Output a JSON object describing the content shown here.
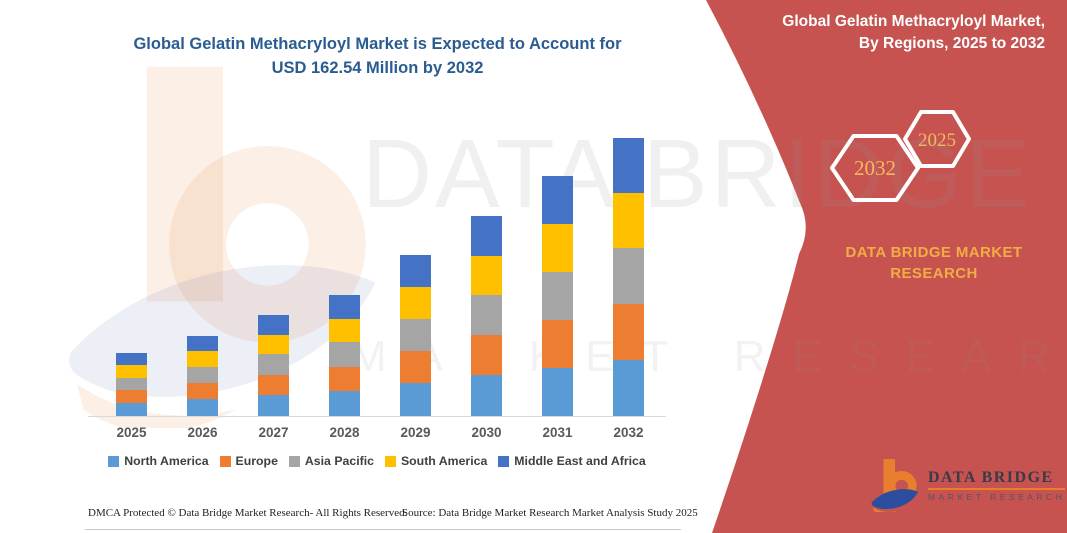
{
  "main_title": {
    "line1": "Global Gelatin Methacryloyl Market is Expected to Account for",
    "line2": "USD 162.54 Million by 2032",
    "color": "#2b5c91"
  },
  "chart_data": {
    "type": "bar",
    "stacked": true,
    "unit": "USD Million",
    "categories": [
      "2025",
      "2026",
      "2027",
      "2028",
      "2029",
      "2030",
      "2031",
      "2032"
    ],
    "series": [
      {
        "name": "North America",
        "color": "#5B9BD5",
        "values": [
          7.6,
          9.8,
          12.2,
          14.6,
          19.2,
          23.7,
          28.2,
          32.94
        ]
      },
      {
        "name": "Europe",
        "color": "#ED7D31",
        "values": [
          7.5,
          9.6,
          12.0,
          14.3,
          19.0,
          23.5,
          28.1,
          32.7
        ]
      },
      {
        "name": "Asia Pacific",
        "color": "#A5A5A5",
        "values": [
          7.4,
          9.4,
          11.8,
          14.2,
          18.8,
          23.4,
          28.0,
          32.6
        ]
      },
      {
        "name": "South America",
        "color": "#FFC000",
        "values": [
          7.2,
          9.2,
          11.6,
          13.9,
          18.6,
          23.2,
          28.0,
          32.3
        ]
      },
      {
        "name": "Middle East and Africa",
        "color": "#4472C4",
        "values": [
          7.1,
          8.8,
          11.4,
          13.7,
          18.5,
          23.1,
          28.0,
          32.0
        ]
      }
    ],
    "totals_estimated": [
      36.8,
      46.8,
      59.0,
      70.7,
      94.1,
      116.9,
      140.3,
      162.54
    ],
    "ylim": [
      0,
      170
    ],
    "grid": false,
    "y_axis_visible": false,
    "legend_position": "bottom"
  },
  "side_panel": {
    "background": "#C65350",
    "title_line1": "Global Gelatin Methacryloyl Market,",
    "title_line2": "By Regions, 2025 to 2032",
    "hexagon_back_label": "2032",
    "hexagon_front_label": "2025",
    "hex_label_color": "#F2BA5E",
    "org_line1": "DATA BRIDGE MARKET",
    "org_line2": "RESEARCH",
    "org_color": "#F0AD45"
  },
  "watermark": {
    "line1": "DATA BRIDGE",
    "line2": "MARKET RESEARCH"
  },
  "logo": {
    "name": "DATA BRIDGE",
    "subtitle": "MARKET RESEARCH"
  },
  "footer": {
    "dmca": "DMCA Protected © Data Bridge Market Research-  All Rights Reserved.",
    "source": "Source: Data Bridge Market Research  Market Analysis Study 2025"
  }
}
